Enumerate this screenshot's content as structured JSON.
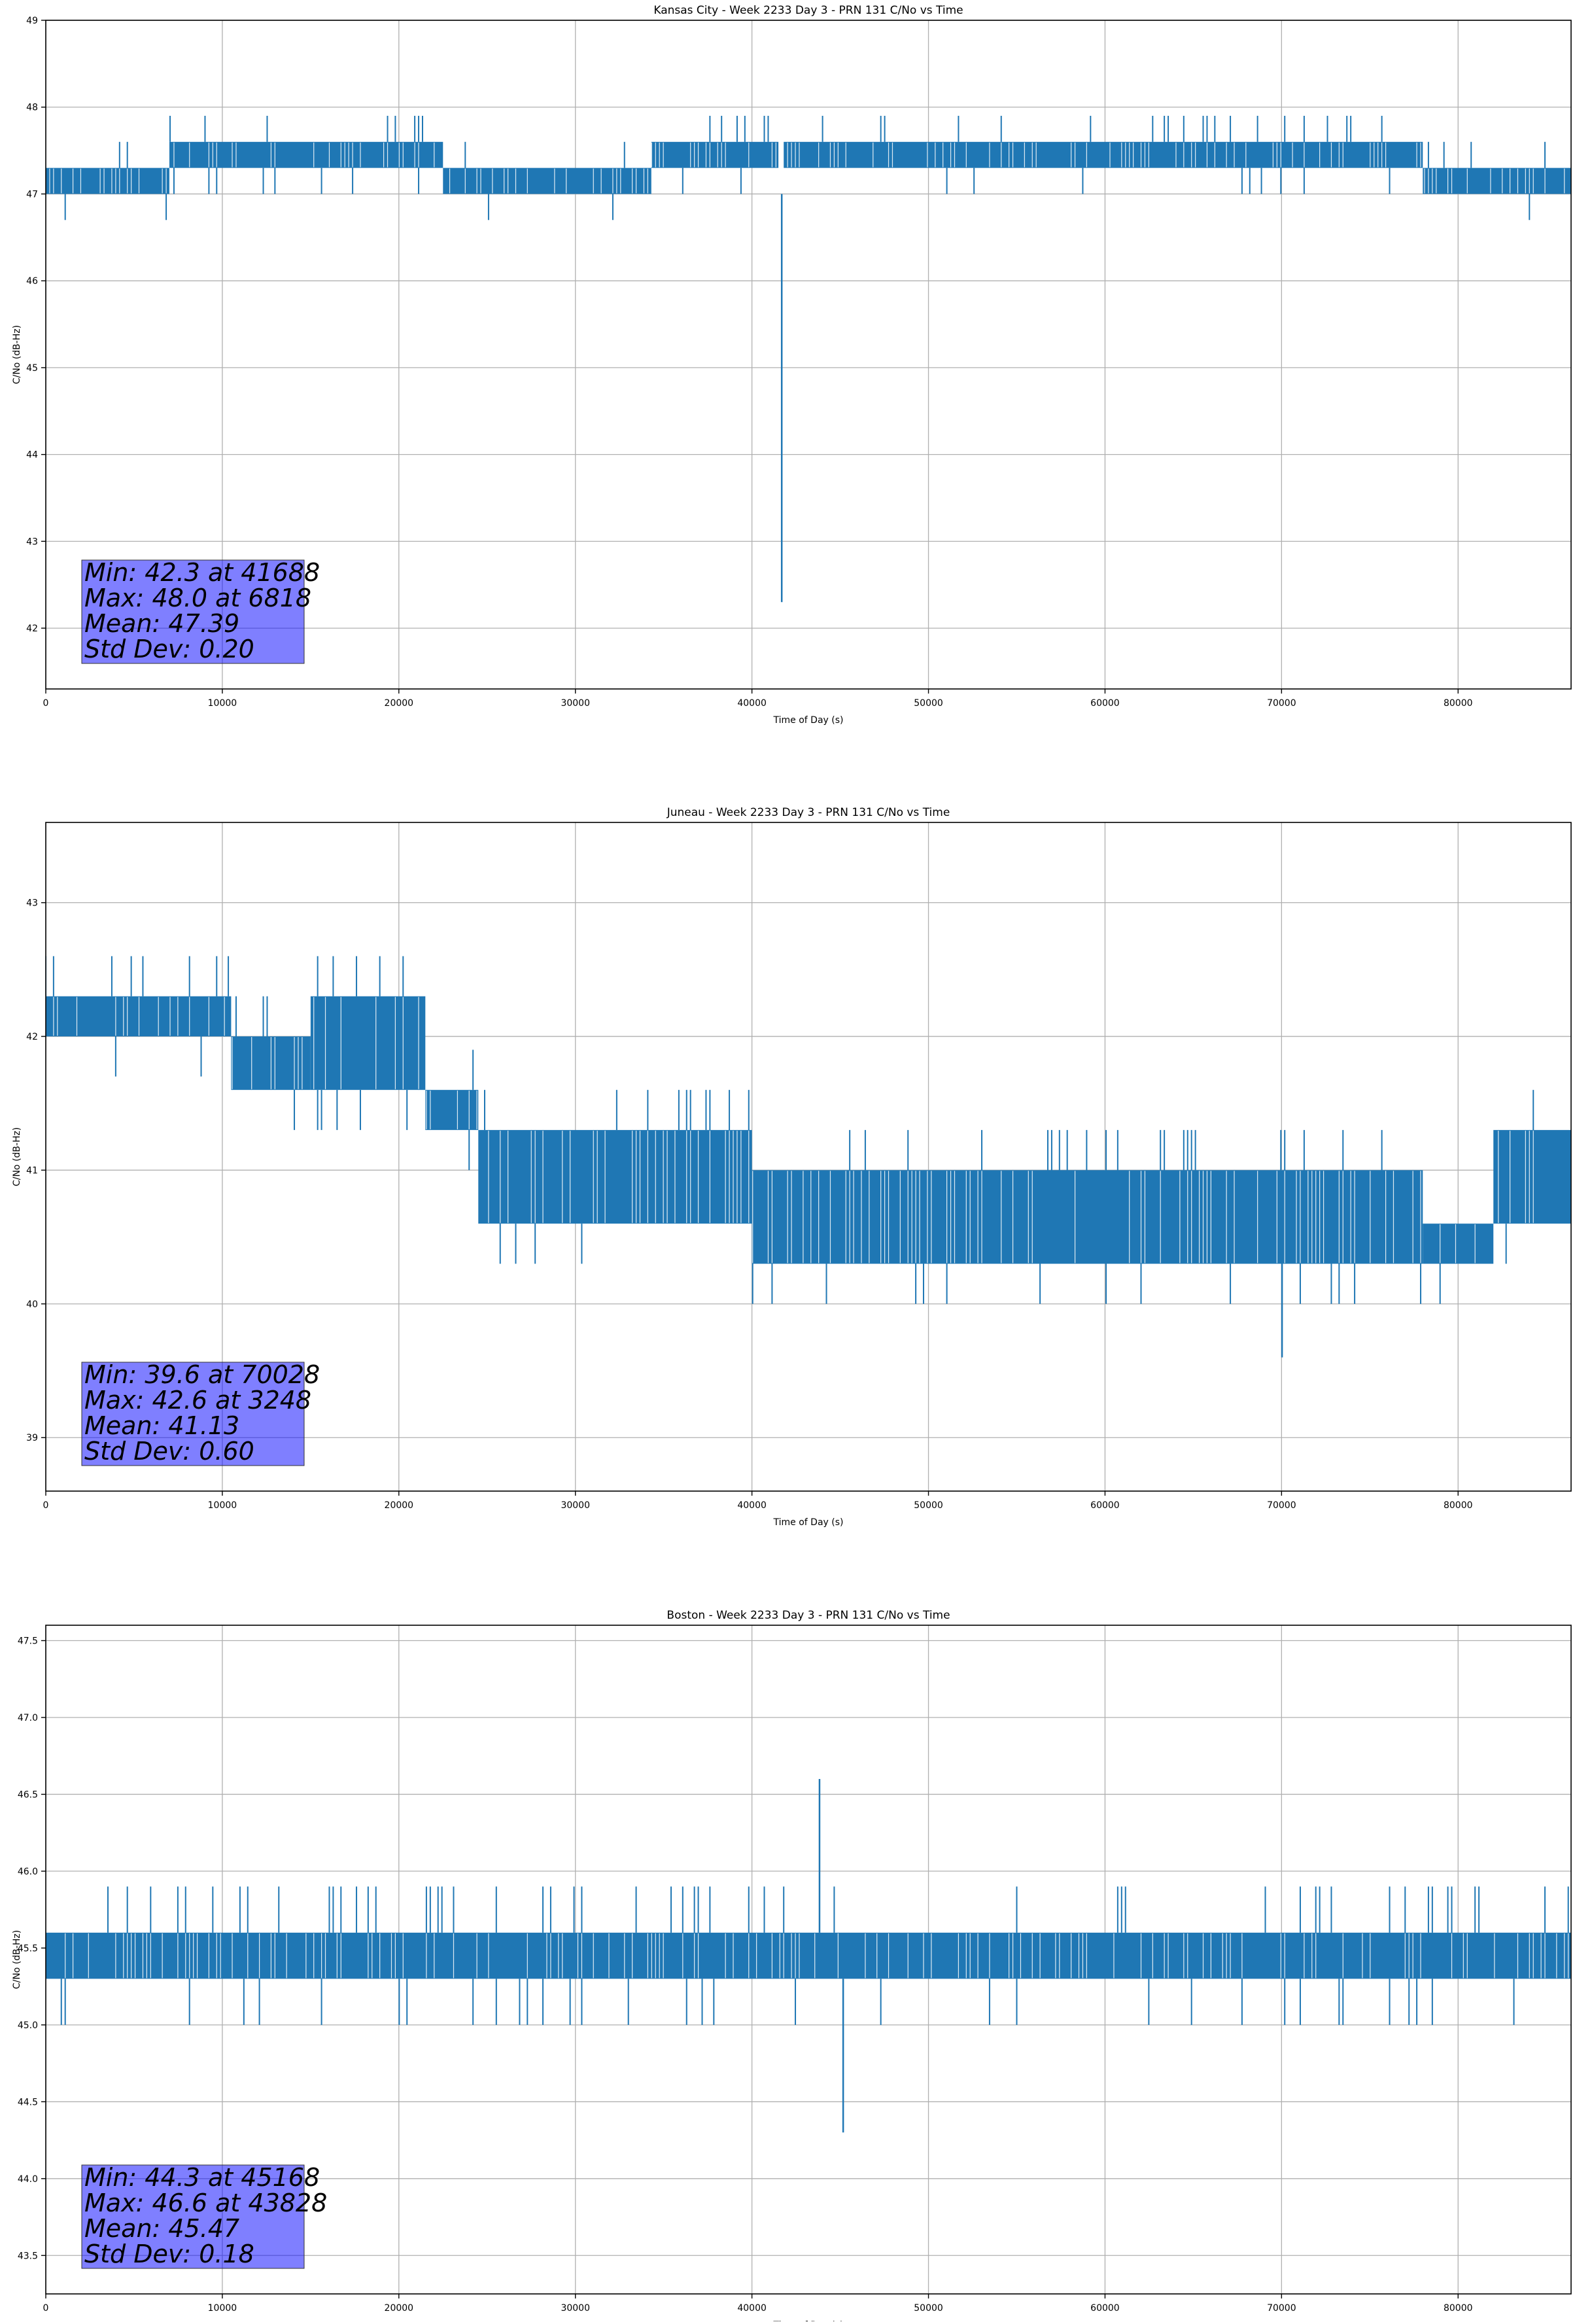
{
  "chart_data": [
    {
      "type": "line",
      "title": "Kansas City - Week 2233 Day 3 - PRN 131 C/No vs Time",
      "xlabel": "Time of Day (s)",
      "ylabel": "C/No (dB-Hz)",
      "xlim": [
        0,
        86400
      ],
      "ylim": [
        41.3,
        49.0
      ],
      "xticks": [
        0,
        10000,
        20000,
        30000,
        40000,
        50000,
        60000,
        70000,
        80000
      ],
      "yticks": [
        42,
        43,
        44,
        45,
        46,
        47,
        48,
        49
      ],
      "ytick_labels": [
        "42",
        "43",
        "44",
        "45",
        "46",
        "47",
        "48",
        "49"
      ],
      "grid": true,
      "series_color": "#1f77b4",
      "band_segments": [
        {
          "x": [
            0,
            7000
          ],
          "y": [
            47.0,
            47.3
          ]
        },
        {
          "x": [
            7000,
            22500
          ],
          "y": [
            47.3,
            47.6
          ]
        },
        {
          "x": [
            22500,
            34300
          ],
          "y": [
            47.0,
            47.3
          ]
        },
        {
          "x": [
            34300,
            41500
          ],
          "y": [
            47.3,
            47.6
          ]
        },
        {
          "x": [
            41800,
            78000
          ],
          "y": [
            47.3,
            47.6
          ]
        },
        {
          "x": [
            78000,
            86400
          ],
          "y": [
            47.0,
            47.3
          ]
        }
      ],
      "spike_values": [
        47.6,
        48.0,
        46.6
      ],
      "spikes_up_regions": [
        [
          6500,
          13000
        ],
        [
          36000,
          41500
        ],
        [
          61500,
          74000
        ]
      ],
      "dips": [
        {
          "x": 41688,
          "y": 42.3
        }
      ],
      "stats": {
        "min_text": "Min: 42.3 at 41688",
        "max_text": "Max: 48.0 at 6818",
        "mean_text": "Mean: 47.39",
        "std_text": "Std Dev: 0.20"
      }
    },
    {
      "type": "line",
      "title": "Juneau - Week 2233 Day 3 - PRN 131 C/No vs Time",
      "xlabel": "Time of Day (s)",
      "ylabel": "C/No (dB-Hz)",
      "xlim": [
        0,
        86400
      ],
      "ylim": [
        38.6,
        43.6
      ],
      "xticks": [
        0,
        10000,
        20000,
        30000,
        40000,
        50000,
        60000,
        70000,
        80000
      ],
      "yticks": [
        39,
        40,
        41,
        42,
        43
      ],
      "ytick_labels": [
        "39",
        "40",
        "41",
        "42",
        "43"
      ],
      "grid": true,
      "series_color": "#1f77b4",
      "band_segments": [
        {
          "x": [
            0,
            10500
          ],
          "y": [
            42.0,
            42.3
          ]
        },
        {
          "x": [
            10500,
            15000
          ],
          "y": [
            41.6,
            42.0
          ]
        },
        {
          "x": [
            15000,
            21500
          ],
          "y": [
            41.6,
            42.3
          ]
        },
        {
          "x": [
            21500,
            24500
          ],
          "y": [
            41.3,
            41.6
          ]
        },
        {
          "x": [
            24500,
            40000
          ],
          "y": [
            40.6,
            41.3
          ]
        },
        {
          "x": [
            40000,
            78000
          ],
          "y": [
            40.3,
            41.0
          ]
        },
        {
          "x": [
            78000,
            82000
          ],
          "y": [
            40.3,
            40.6
          ]
        },
        {
          "x": [
            82000,
            86400
          ],
          "y": [
            40.6,
            41.3
          ]
        }
      ],
      "spike_values": [
        42.6,
        41.6,
        40.0,
        39.6
      ],
      "spikes_up_regions": [
        [
          3000,
          18500
        ],
        [
          28000,
          40000
        ],
        [
          55000,
          72000
        ]
      ],
      "dips": [
        {
          "x": 70028,
          "y": 39.6
        }
      ],
      "stats": {
        "min_text": "Min: 39.6 at 70028",
        "max_text": "Max: 42.6 at 3248",
        "mean_text": "Mean: 41.13",
        "std_text": "Std Dev: 0.60"
      }
    },
    {
      "type": "line",
      "title": "Boston - Week 2233 Day 3 - PRN 131 C/No vs Time",
      "xlabel": "Time of Day (s)",
      "ylabel": "C/No (dB-Hz)",
      "xlim": [
        0,
        86400
      ],
      "ylim": [
        43.25,
        47.6
      ],
      "xticks": [
        0,
        10000,
        20000,
        30000,
        40000,
        50000,
        60000,
        70000,
        80000
      ],
      "yticks": [
        43.5,
        44.0,
        44.5,
        45.0,
        45.5,
        46.0,
        46.5,
        47.0,
        47.5
      ],
      "ytick_labels": [
        "43.5",
        "44.0",
        "44.5",
        "45.0",
        "45.5",
        "46.0",
        "46.5",
        "47.0",
        "47.5"
      ],
      "grid": true,
      "series_color": "#1f77b4",
      "band_segments": [
        {
          "x": [
            0,
            86400
          ],
          "y": [
            45.3,
            45.6
          ]
        }
      ],
      "spike_values": [
        46.0,
        45.0
      ],
      "spikes_up_regions": [
        [
          2500,
          45000
        ],
        [
          67000,
          86400
        ]
      ],
      "dips": [
        {
          "x": 45168,
          "y": 44.3
        }
      ],
      "peaks": [
        {
          "x": 43828,
          "y": 46.6
        }
      ],
      "stats": {
        "min_text": "Min: 44.3 at 45168",
        "max_text": "Max: 46.6 at 43828",
        "mean_text": "Mean: 45.47",
        "std_text": "Std Dev: 0.18"
      }
    }
  ]
}
